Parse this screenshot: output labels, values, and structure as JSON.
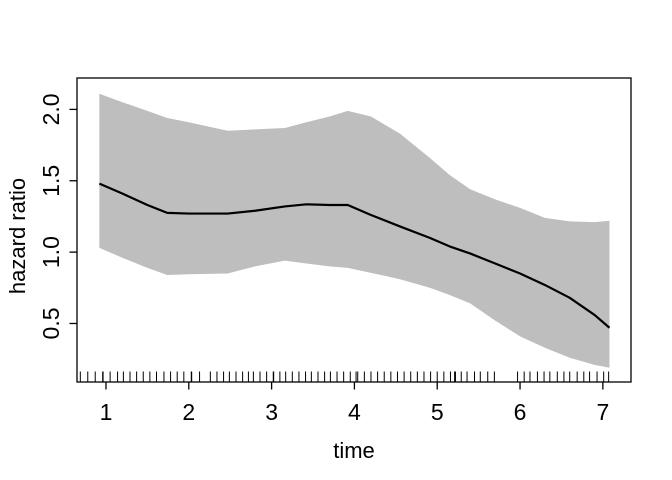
{
  "figure": {
    "background": "#ffffff",
    "band_color": "#bebebe",
    "line_color": "#000000",
    "axis_color": "#000000"
  },
  "chart_data": {
    "type": "area",
    "title": "",
    "xlabel": "time",
    "ylabel": "hazard ratio",
    "grid": false,
    "legend": "none",
    "x_axis": {
      "ticks": [
        1,
        2,
        3,
        4,
        5,
        6,
        7
      ],
      "tick_labels": [
        "1",
        "2",
        "3",
        "4",
        "5",
        "6",
        "7"
      ],
      "range": [
        0.65,
        7.34
      ]
    },
    "y_axis": {
      "ticks": [
        0.5,
        1.0,
        1.5,
        2.0
      ],
      "tick_labels": [
        "0.5",
        "1.0",
        "1.5",
        "2.0"
      ],
      "range": [
        0.09,
        2.22
      ]
    },
    "x": [
      0.92,
      1.2,
      1.5,
      1.74,
      2.0,
      2.47,
      2.8,
      3.16,
      3.42,
      3.7,
      3.92,
      4.2,
      4.55,
      4.91,
      5.15,
      5.4,
      5.7,
      6.0,
      6.3,
      6.6,
      6.9,
      7.08
    ],
    "series": [
      {
        "name": "hazard ratio estimate",
        "role": "line",
        "values": [
          1.48,
          1.41,
          1.33,
          1.275,
          1.27,
          1.27,
          1.29,
          1.32,
          1.335,
          1.33,
          1.33,
          1.26,
          1.18,
          1.1,
          1.04,
          0.99,
          0.92,
          0.85,
          0.77,
          0.68,
          0.56,
          0.47
        ]
      },
      {
        "name": "upper confidence limit",
        "role": "band-upper",
        "values": [
          2.11,
          2.05,
          1.99,
          1.94,
          1.91,
          1.85,
          1.86,
          1.87,
          1.91,
          1.95,
          1.99,
          1.95,
          1.83,
          1.66,
          1.54,
          1.44,
          1.37,
          1.31,
          1.24,
          1.215,
          1.21,
          1.22
        ]
      },
      {
        "name": "lower confidence limit",
        "role": "band-lower",
        "values": [
          1.03,
          0.96,
          0.89,
          0.84,
          0.845,
          0.85,
          0.9,
          0.94,
          0.92,
          0.9,
          0.89,
          0.855,
          0.81,
          0.75,
          0.7,
          0.64,
          0.52,
          0.41,
          0.33,
          0.26,
          0.21,
          0.19
        ]
      }
    ],
    "rug_x": [
      0.69,
      0.78,
      0.87,
      0.96,
      0.965,
      1.05,
      1.14,
      1.21,
      1.29,
      1.37,
      1.45,
      1.53,
      1.61,
      1.7,
      1.78,
      1.86,
      1.94,
      2.03,
      2.035,
      2.13,
      2.26,
      2.34,
      2.42,
      2.49,
      2.57,
      2.65,
      2.72,
      2.78,
      2.86,
      2.94,
      3.02,
      3.025,
      3.1,
      3.17,
      3.25,
      3.33,
      3.41,
      3.48,
      3.56,
      3.64,
      3.71,
      3.79,
      3.87,
      3.95,
      4.02,
      4.04,
      4.12,
      4.2,
      4.28,
      4.36,
      4.44,
      4.52,
      4.6,
      4.68,
      4.76,
      4.84,
      4.92,
      5.0,
      5.08,
      5.16,
      5.21,
      5.22,
      5.29,
      5.36,
      5.45,
      5.52,
      5.61,
      5.69,
      5.97,
      6.05,
      6.12,
      6.21,
      6.29,
      6.36,
      6.45,
      6.53,
      6.6,
      6.69,
      6.77,
      6.84,
      6.93,
      7.01,
      7.07
    ]
  }
}
